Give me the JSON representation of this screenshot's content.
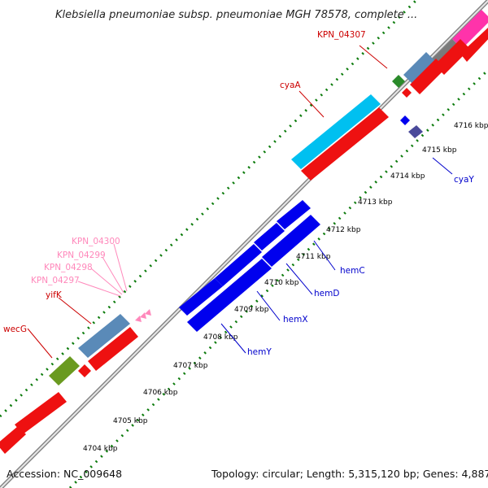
{
  "title": "Klebsiella pneumoniae subsp. pneumoniae MGH 78578, complete ...",
  "footer": {
    "accession": "Accession: NC_009648",
    "summary": "Topology: circular; Length: 5,315,120 bp; Genes: 4,887"
  },
  "scale_labels": [
    "4704 kbp",
    "4705 kbp",
    "4706 kbp",
    "4707 kbp",
    "4708 kbp",
    "4709 kbp",
    "4710 kbp",
    "4711 kbp",
    "4712 kbp",
    "4713 kbp",
    "4714 kbp",
    "4715 kbp",
    "4716 kbp"
  ],
  "gene_labels": [
    {
      "text": "KPN_04307",
      "color": "#cc0000"
    },
    {
      "text": "cyaA",
      "color": "#cc0000"
    },
    {
      "text": "cyaY",
      "color": "#0000cc"
    },
    {
      "text": "KPN_04300",
      "color": "#ff88bb"
    },
    {
      "text": "KPN_04299",
      "color": "#ff88bb"
    },
    {
      "text": "KPN_04298",
      "color": "#ff88bb"
    },
    {
      "text": "KPN_04297",
      "color": "#ff88bb"
    },
    {
      "text": "yifK",
      "color": "#cc0000"
    },
    {
      "text": "wecG",
      "color": "#cc0000"
    },
    {
      "text": "hemC",
      "color": "#0000cc"
    },
    {
      "text": "hemD",
      "color": "#0000cc"
    },
    {
      "text": "hemX",
      "color": "#0000cc"
    },
    {
      "text": "hemY",
      "color": "#0000cc"
    }
  ],
  "colors": {
    "cds": "#ff0000",
    "cds_dark": "#cc0000",
    "blue_gene": "#0000ee",
    "cyan_gene": "#00c0f0",
    "steel_gene": "#5a8ab8",
    "olive_gene": "#6a9a20",
    "green_gene": "#2a8a2a",
    "magenta_gene": "#ff33aa",
    "grey_gene": "#777777",
    "ticks": "#0a7a0a",
    "backbone": "#999999"
  }
}
